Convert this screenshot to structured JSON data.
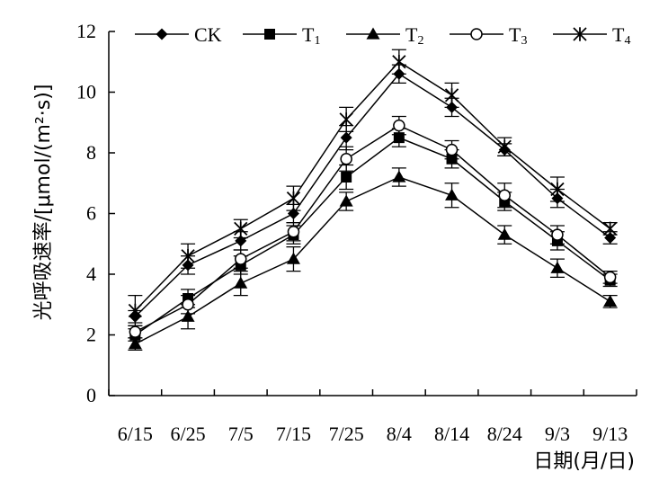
{
  "chart_data": {
    "type": "line",
    "xlabel": "日期(月/日)",
    "ylabel": "光呼吸速率/[μmol/(m²·s)]",
    "categories": [
      "6/15",
      "6/25",
      "7/5",
      "7/15",
      "7/25",
      "8/4",
      "8/14",
      "8/24",
      "9/3",
      "9/13"
    ],
    "ylim": [
      0,
      12
    ],
    "yticks": [
      "0",
      "2",
      "4",
      "6",
      "8",
      "10",
      "12"
    ],
    "grid": false,
    "legend_position": "top",
    "series": [
      {
        "name": "CK",
        "label_main": "CK",
        "label_sub": "",
        "marker": "diamond",
        "values": [
          2.6,
          4.3,
          5.1,
          6.0,
          8.5,
          10.6,
          9.5,
          8.1,
          6.5,
          5.2
        ],
        "errors": [
          0.2,
          0.3,
          0.3,
          0.3,
          0.4,
          0.3,
          0.3,
          0.2,
          0.3,
          0.2
        ]
      },
      {
        "name": "T1",
        "label_main": "T",
        "label_sub": "1",
        "marker": "square",
        "values": [
          2.0,
          3.2,
          4.3,
          5.3,
          7.2,
          8.5,
          7.8,
          6.4,
          5.1,
          3.8
        ],
        "errors": [
          0.2,
          0.3,
          0.3,
          0.3,
          0.4,
          0.3,
          0.3,
          0.3,
          0.3,
          0.2
        ]
      },
      {
        "name": "T2",
        "label_main": "T",
        "label_sub": "2",
        "marker": "triangle",
        "values": [
          1.7,
          2.6,
          3.7,
          4.5,
          6.4,
          7.2,
          6.6,
          5.3,
          4.2,
          3.1
        ],
        "errors": [
          0.2,
          0.4,
          0.4,
          0.4,
          0.3,
          0.3,
          0.4,
          0.3,
          0.3,
          0.2
        ]
      },
      {
        "name": "T3",
        "label_main": "T",
        "label_sub": "3",
        "marker": "circle",
        "values": [
          2.1,
          3.0,
          4.5,
          5.4,
          7.8,
          8.9,
          8.1,
          6.6,
          5.3,
          3.9
        ],
        "errors": [
          0.2,
          0.3,
          0.3,
          0.3,
          0.4,
          0.3,
          0.3,
          0.4,
          0.3,
          0.2
        ]
      },
      {
        "name": "T4",
        "label_main": "T",
        "label_sub": "4",
        "marker": "asterisk",
        "values": [
          2.8,
          4.6,
          5.5,
          6.5,
          9.1,
          11.0,
          9.9,
          8.2,
          6.8,
          5.5
        ],
        "errors": [
          0.5,
          0.4,
          0.3,
          0.4,
          0.4,
          0.4,
          0.4,
          0.3,
          0.4,
          0.2
        ]
      }
    ]
  }
}
